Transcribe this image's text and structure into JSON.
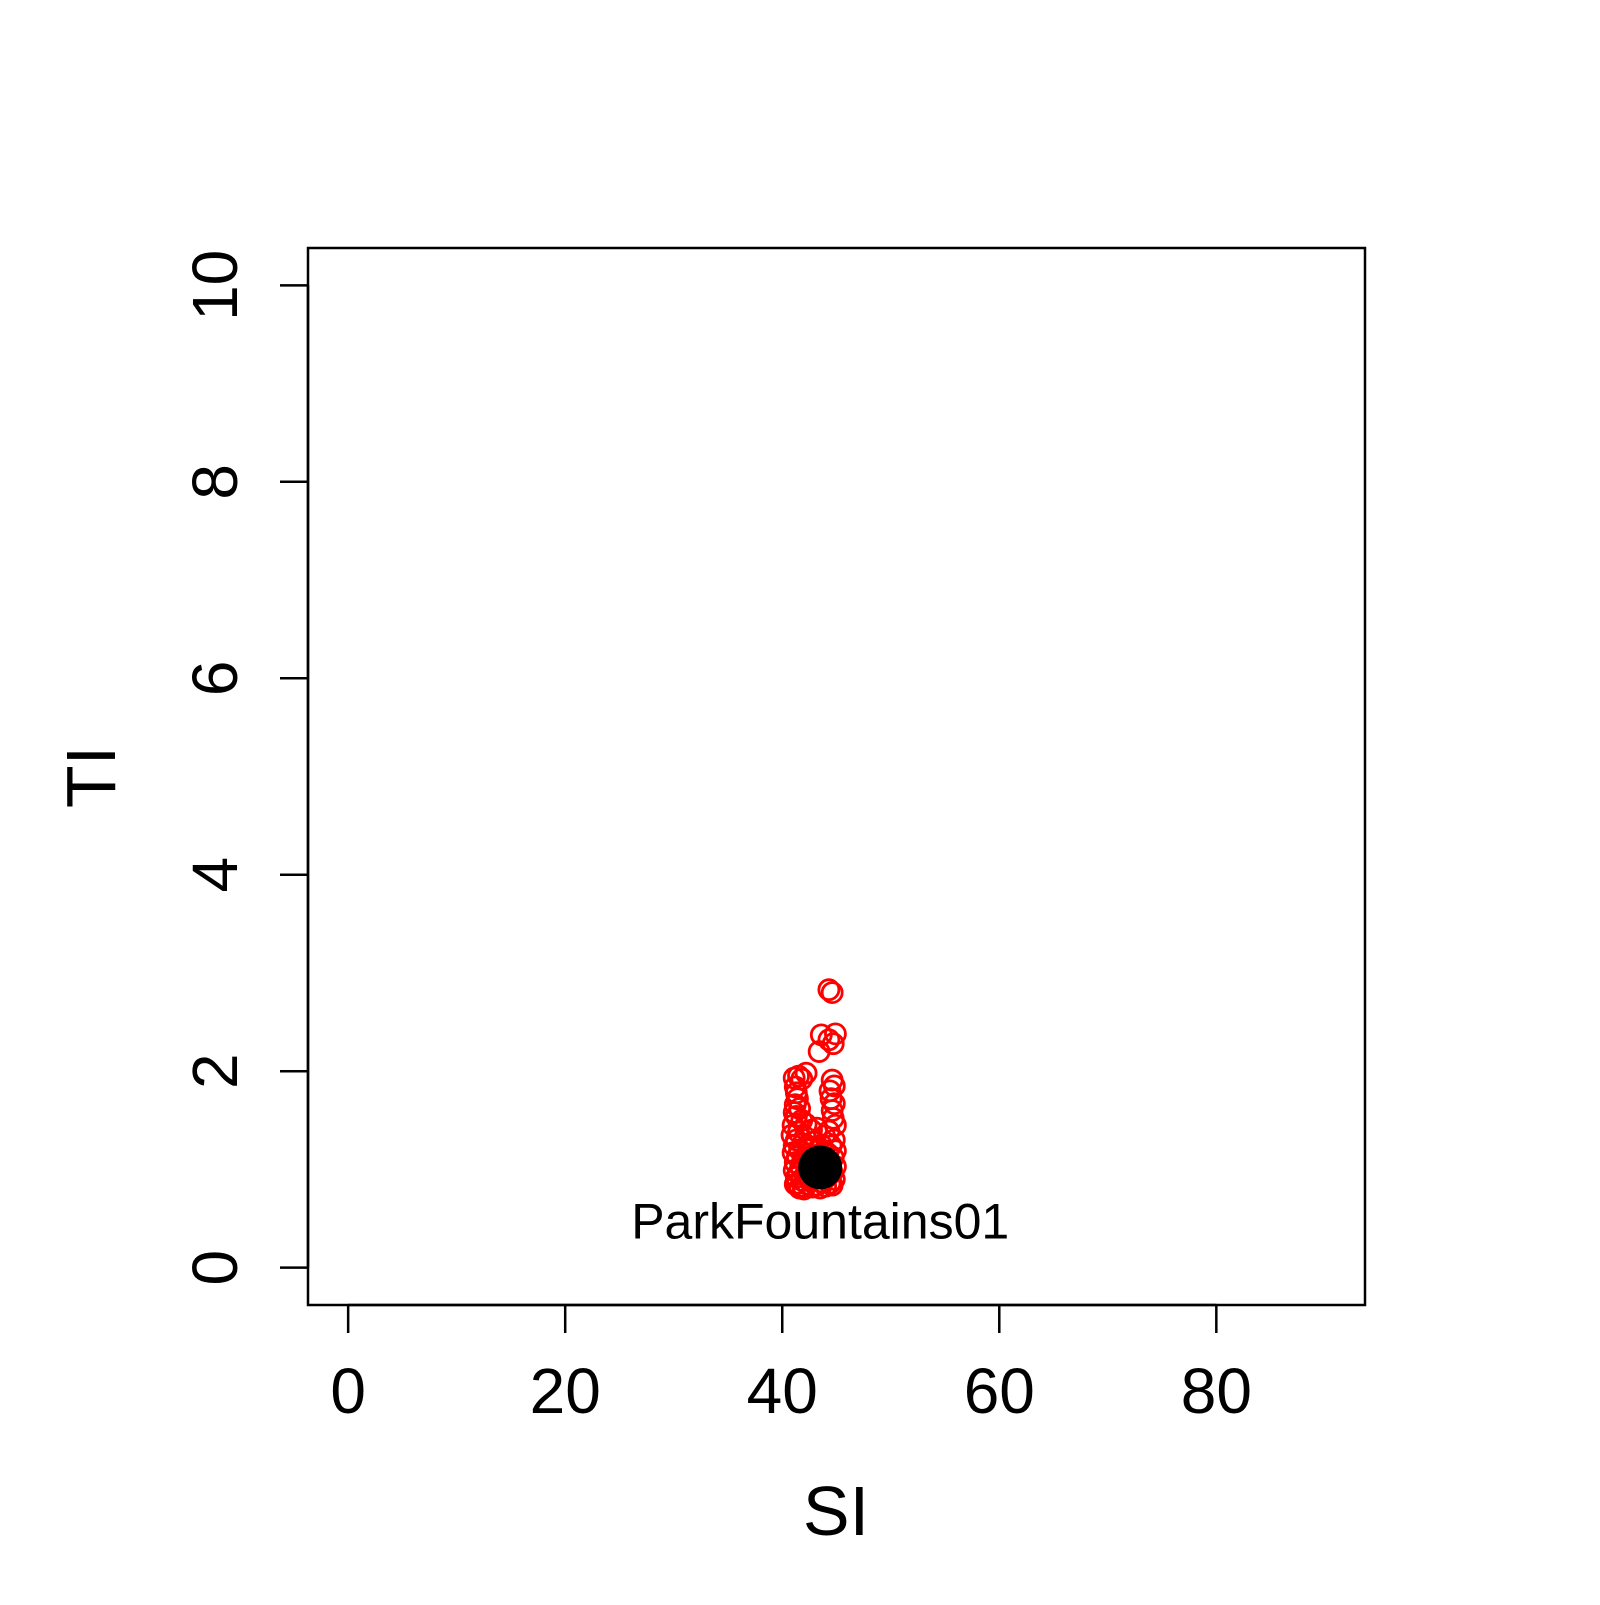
{
  "chart_data": {
    "type": "scatter",
    "title": "",
    "xlabel": "SI",
    "ylabel": "TI",
    "xlim": [
      -3.7,
      93.7
    ],
    "ylim": [
      -0.38,
      10.38
    ],
    "x_ticks": [
      0,
      20,
      40,
      60,
      80
    ],
    "x_tick_labels": [
      "0",
      "20",
      "40",
      "60",
      "80"
    ],
    "y_ticks": [
      0,
      2,
      4,
      6,
      8,
      10
    ],
    "y_tick_labels": [
      "0",
      "2",
      "4",
      "6",
      "8",
      "10"
    ],
    "grid": false,
    "legend": "none",
    "colors": {
      "points": "#ff0000",
      "reference": "#000000"
    },
    "series": [
      {
        "marker": "open-circle",
        "color": "#ff0000",
        "points": [
          [
            44.3,
            2.83
          ],
          [
            44.6,
            2.8
          ],
          [
            43.6,
            2.37
          ],
          [
            44.9,
            2.38
          ],
          [
            44.3,
            2.32
          ],
          [
            44.7,
            2.28
          ],
          [
            43.4,
            2.2
          ],
          [
            42.2,
            1.98
          ],
          [
            41.5,
            1.95
          ],
          [
            41.1,
            1.93
          ],
          [
            41.8,
            1.92
          ],
          [
            44.6,
            1.91
          ],
          [
            44.8,
            1.85
          ],
          [
            44.4,
            1.8
          ],
          [
            41.2,
            1.84
          ],
          [
            41.3,
            1.78
          ],
          [
            41.4,
            1.72
          ],
          [
            44.5,
            1.72
          ],
          [
            44.8,
            1.67
          ],
          [
            41.2,
            1.66
          ],
          [
            41.6,
            1.62
          ],
          [
            44.6,
            1.6
          ],
          [
            41.1,
            1.58
          ],
          [
            41.3,
            1.54
          ],
          [
            41.8,
            1.5
          ],
          [
            44.7,
            1.52
          ],
          [
            42.2,
            1.46
          ],
          [
            41.0,
            1.45
          ],
          [
            44.9,
            1.45
          ],
          [
            43.2,
            1.42
          ],
          [
            42.7,
            1.4
          ],
          [
            41.5,
            1.38
          ],
          [
            44.3,
            1.39
          ],
          [
            40.9,
            1.35
          ],
          [
            43.9,
            1.34
          ],
          [
            42.1,
            1.33
          ],
          [
            41.3,
            1.3
          ],
          [
            44.8,
            1.3
          ],
          [
            42.9,
            1.28
          ],
          [
            41.9,
            1.26
          ],
          [
            43.6,
            1.25
          ],
          [
            41.1,
            1.24
          ],
          [
            44.5,
            1.24
          ],
          [
            42.5,
            1.22
          ],
          [
            41.6,
            1.2
          ],
          [
            43.3,
            1.2
          ],
          [
            44.9,
            1.19
          ],
          [
            41.0,
            1.17
          ],
          [
            42.3,
            1.16
          ],
          [
            44.2,
            1.16
          ],
          [
            43.0,
            1.14
          ],
          [
            41.4,
            1.13
          ],
          [
            44.7,
            1.12
          ],
          [
            41.9,
            1.1
          ],
          [
            43.7,
            1.1
          ],
          [
            42.6,
            1.08
          ],
          [
            41.2,
            1.07
          ],
          [
            44.4,
            1.06
          ],
          [
            43.1,
            1.05
          ],
          [
            41.7,
            1.03
          ],
          [
            44.9,
            1.03
          ],
          [
            42.4,
            1.01
          ],
          [
            43.9,
            1.0
          ],
          [
            41.1,
            0.99
          ],
          [
            42.9,
            0.98
          ],
          [
            44.6,
            0.97
          ],
          [
            41.5,
            0.96
          ],
          [
            43.4,
            0.95
          ],
          [
            42.1,
            0.94
          ],
          [
            44.2,
            0.93
          ],
          [
            41.3,
            0.92
          ],
          [
            43.0,
            0.91
          ],
          [
            44.8,
            0.9
          ],
          [
            41.8,
            0.89
          ],
          [
            42.6,
            0.88
          ],
          [
            43.7,
            0.87
          ],
          [
            41.4,
            0.86
          ],
          [
            44.4,
            0.86
          ],
          [
            42.3,
            0.85
          ],
          [
            43.2,
            0.84
          ],
          [
            41.9,
            0.83
          ],
          [
            44.0,
            0.83
          ],
          [
            42.8,
            0.82
          ],
          [
            41.6,
            0.81
          ],
          [
            43.5,
            0.81
          ],
          [
            42.0,
            0.8
          ],
          [
            44.6,
            0.84
          ],
          [
            41.2,
            0.85
          ],
          [
            42.7,
            0.95
          ],
          [
            43.8,
            1.18
          ]
        ]
      },
      {
        "marker": "filled-circle",
        "color": "#000000",
        "points": [
          [
            43.5,
            1.02
          ]
        ]
      }
    ],
    "annotations": [
      {
        "text": "ParkFountains01",
        "x": 43.5,
        "y": 0.48
      }
    ]
  }
}
